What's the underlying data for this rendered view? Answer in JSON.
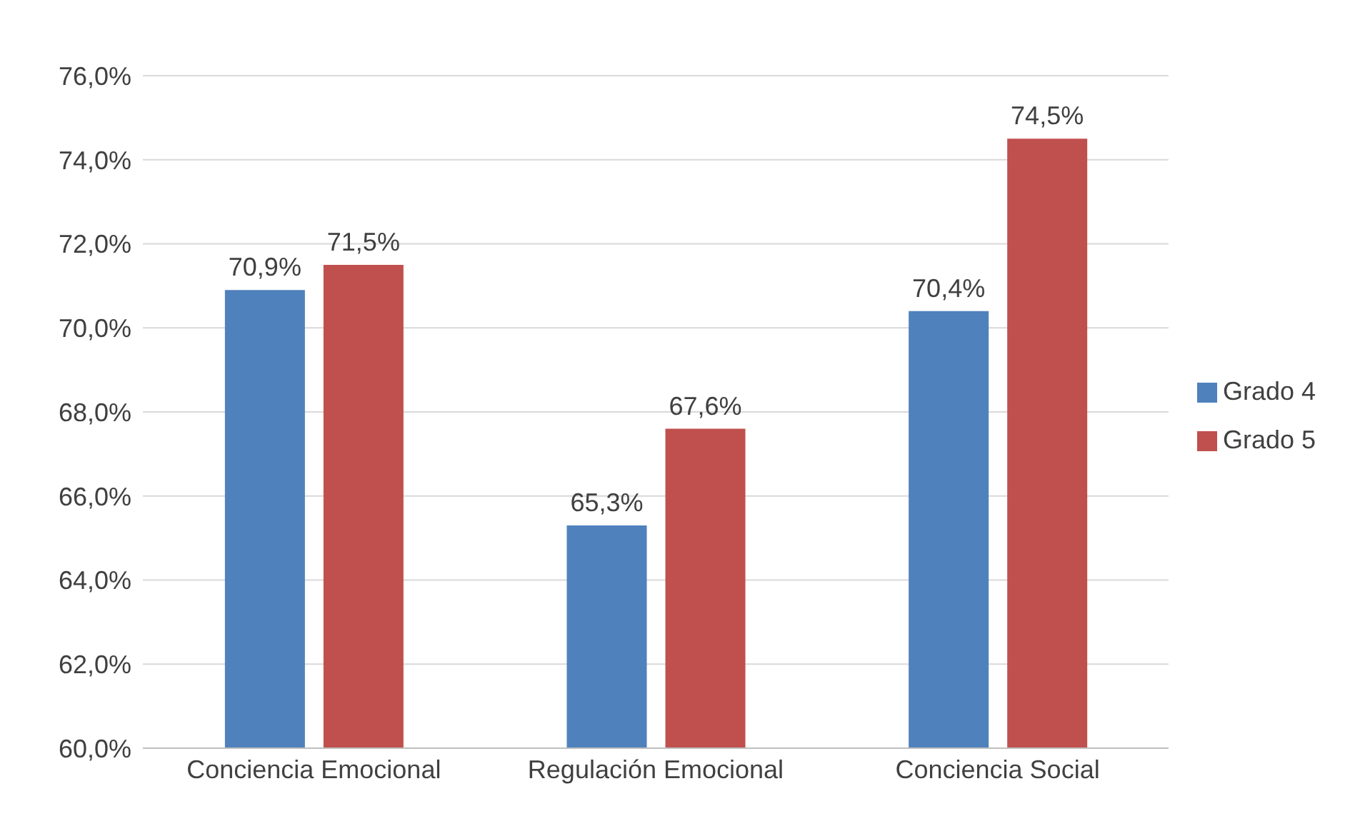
{
  "chart_data": {
    "type": "bar",
    "categories": [
      "Conciencia Emocional",
      "Regulación Emocional",
      "Conciencia Social"
    ],
    "series": [
      {
        "name": "Grado 4",
        "color": "#4f81bd",
        "values": [
          70.9,
          65.3,
          70.4
        ],
        "value_labels": [
          "70,9%",
          "65,3%",
          "70,4%"
        ]
      },
      {
        "name": "Grado 5",
        "color": "#c0504d",
        "values": [
          71.5,
          67.6,
          74.5
        ],
        "value_labels": [
          "71,5%",
          "67,6%",
          "74,5%"
        ]
      }
    ],
    "ylim": [
      60,
      76
    ],
    "yticks": [
      {
        "value": 60,
        "label": "60,0%"
      },
      {
        "value": 62,
        "label": "62,0%"
      },
      {
        "value": 64,
        "label": "64,0%"
      },
      {
        "value": 66,
        "label": "66,0%"
      },
      {
        "value": 68,
        "label": "68,0%"
      },
      {
        "value": 70,
        "label": "70,0%"
      },
      {
        "value": 72,
        "label": "72,0%"
      },
      {
        "value": 74,
        "label": "74,0%"
      },
      {
        "value": 76,
        "label": "76,0%"
      }
    ],
    "grid": "y",
    "legend": "right"
  }
}
